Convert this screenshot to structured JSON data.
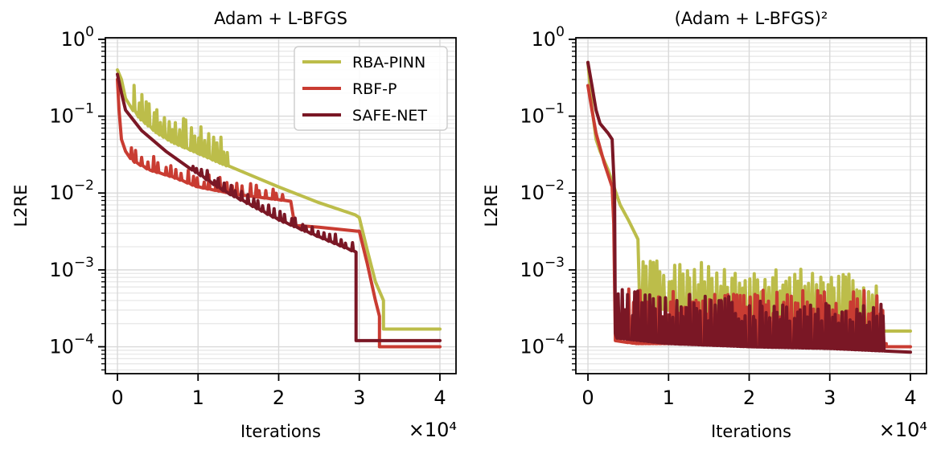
{
  "figure": {
    "xlabel_shared": "Iterations",
    "x_multiplier": "×10⁴"
  },
  "colors": {
    "rba_pinn": "#bcbd4a",
    "rbf_p": "#c93c32",
    "safe_net": "#7a1725"
  },
  "chart_data": [
    {
      "type": "line",
      "title": "Adam + L-BFGS",
      "xlabel": "Iterations",
      "ylabel": "L2RE",
      "x_multiplier": "×10⁴",
      "xlim": [
        -0.15,
        4.2
      ],
      "ylim_log10": [
        -4.35,
        0.02
      ],
      "yscale": "log",
      "xticks": [
        0,
        1,
        2,
        3,
        4
      ],
      "yticks_exponents": [
        0,
        -1,
        -2,
        -3,
        -4
      ],
      "grid": true,
      "legend": {
        "placement": "top-right",
        "entries": [
          "RBA-PINN",
          "RBF-P",
          "SAFE-NET"
        ]
      },
      "series": [
        {
          "name": "RBA-PINN",
          "color_key": "rba_pinn",
          "x": [
            0,
            0.05,
            0.1,
            0.2,
            0.3,
            0.5,
            0.7,
            1.0,
            1.3,
            1.6,
            2.0,
            2.5,
            2.95,
            3.0,
            3.1,
            3.2,
            3.3,
            3.3,
            4.0
          ],
          "values": [
            0.4,
            0.3,
            0.17,
            0.12,
            0.09,
            0.06,
            0.045,
            0.033,
            0.024,
            0.018,
            0.012,
            0.0075,
            0.0052,
            0.0048,
            0.0018,
            0.0007,
            0.0004,
            0.00017,
            0.00017
          ],
          "spikes": {
            "x0": 0.2,
            "x1": 1.4,
            "n": 26,
            "factor": 2.4,
            "seed": 3
          }
        },
        {
          "name": "RBF-P",
          "color_key": "rbf_p",
          "x": [
            0,
            0.02,
            0.05,
            0.1,
            0.2,
            0.4,
            0.7,
            1.0,
            1.5,
            2.0,
            2.15,
            2.2,
            2.5,
            2.97,
            3.0,
            3.1,
            3.2,
            3.25,
            3.25,
            4.0
          ],
          "values": [
            0.3,
            0.12,
            0.05,
            0.035,
            0.026,
            0.02,
            0.016,
            0.012,
            0.0095,
            0.0082,
            0.0078,
            0.0038,
            0.0036,
            0.0032,
            0.0032,
            0.0012,
            0.0004,
            0.00025,
            0.0001,
            0.0001
          ],
          "spikes": {
            "x0": 0.15,
            "x1": 2.1,
            "n": 28,
            "factor": 1.55,
            "seed": 7
          }
        },
        {
          "name": "SAFE-NET",
          "color_key": "safe_net",
          "x": [
            0,
            0.05,
            0.1,
            0.3,
            0.6,
            1.0,
            1.3,
            1.6,
            2.0,
            2.5,
            2.96,
            2.96,
            4.0
          ],
          "values": [
            0.35,
            0.2,
            0.12,
            0.065,
            0.035,
            0.018,
            0.011,
            0.0075,
            0.0045,
            0.0027,
            0.0017,
            0.00012,
            0.00012
          ],
          "spikes": {
            "x0": 0.9,
            "x1": 2.95,
            "n": 30,
            "factor": 1.35,
            "seed": 11
          }
        }
      ]
    },
    {
      "type": "line",
      "title": "(Adam + L-BFGS)²",
      "xlabel": "Iterations",
      "ylabel": "L2RE",
      "x_multiplier": "×10⁴",
      "xlim": [
        -0.15,
        4.2
      ],
      "ylim_log10": [
        -4.35,
        0.02
      ],
      "yscale": "log",
      "xticks": [
        0,
        1,
        2,
        3,
        4
      ],
      "yticks_exponents": [
        0,
        -1,
        -2,
        -3,
        -4
      ],
      "grid": true,
      "series": [
        {
          "name": "RBA-PINN",
          "color_key": "rba_pinn",
          "x": [
            0,
            0.05,
            0.1,
            0.15,
            0.25,
            0.4,
            0.5,
            0.62,
            0.64,
            0.66,
            1.0,
            2.0,
            3.0,
            3.4,
            3.6,
            3.6,
            4.0
          ],
          "values": [
            0.5,
            0.13,
            0.05,
            0.035,
            0.02,
            0.007,
            0.0045,
            0.0025,
            0.0004,
            0.00035,
            0.0003,
            0.00025,
            0.00022,
            0.0002,
            0.00018,
            0.00016,
            0.00016
          ],
          "spikes": {
            "x0": 0.66,
            "x1": 3.6,
            "n": 64,
            "factor": 4.5,
            "seed": 5
          }
        },
        {
          "name": "RBF-P",
          "color_key": "rbf_p",
          "x": [
            0,
            0.05,
            0.1,
            0.2,
            0.3,
            0.32,
            0.34,
            0.6,
            1.2,
            2.0,
            3.0,
            3.7,
            3.7,
            4.0
          ],
          "values": [
            0.25,
            0.12,
            0.06,
            0.025,
            0.012,
            0.004,
            0.00012,
            0.00011,
            0.00011,
            0.00011,
            0.00011,
            0.00011,
            0.0001,
            0.0001
          ],
          "spikes": {
            "x0": 0.5,
            "x1": 3.7,
            "n": 70,
            "factor": 5,
            "seed": 9
          }
        },
        {
          "name": "SAFE-NET",
          "color_key": "safe_net",
          "x": [
            0,
            0.05,
            0.1,
            0.15,
            0.25,
            0.3,
            0.33,
            0.34,
            0.36,
            1.0,
            2.0,
            3.0,
            4.0
          ],
          "values": [
            0.5,
            0.25,
            0.12,
            0.08,
            0.06,
            0.05,
            0.01,
            0.00015,
            0.00013,
            0.00011,
            0.0001,
            9.5e-05,
            8.5e-05
          ],
          "spikes": {
            "x0": 0.36,
            "x1": 3.7,
            "n": 78,
            "factor": 4.5,
            "seed": 13
          }
        }
      ]
    }
  ]
}
